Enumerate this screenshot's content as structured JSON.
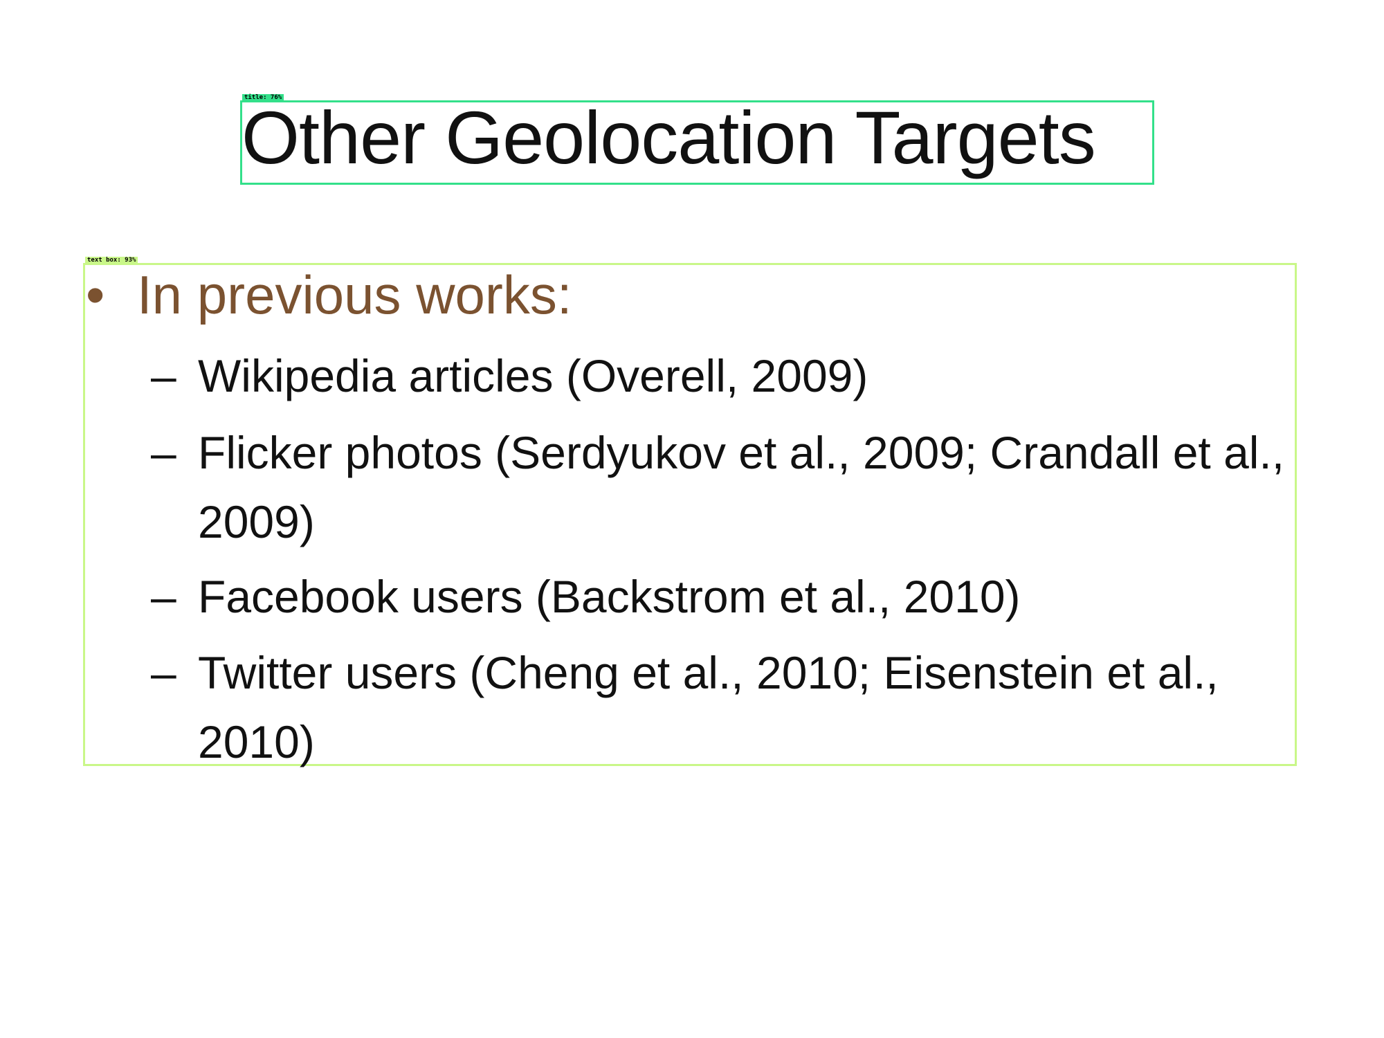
{
  "detections": {
    "title": {
      "label": "title: 76%"
    },
    "text_box": {
      "label": "text box: 93%"
    }
  },
  "slide": {
    "title": "Other Geolocation Targets",
    "bullet": {
      "marker": "•",
      "text": "In previous works:",
      "color": "#7b5230"
    },
    "sub_marker": "–",
    "sub_items": [
      "Wikipedia articles (Overell, 2009)",
      "Flicker photos (Serdyukov et al., 2009; Crandall et al., 2009)",
      "Facebook users (Backstrom et al., 2010)",
      "Twitter users (Cheng et al., 2010; Eisenstein et al., 2010)"
    ]
  },
  "colors": {
    "title_box": "#33e08a",
    "text_box": "#c9f789"
  }
}
